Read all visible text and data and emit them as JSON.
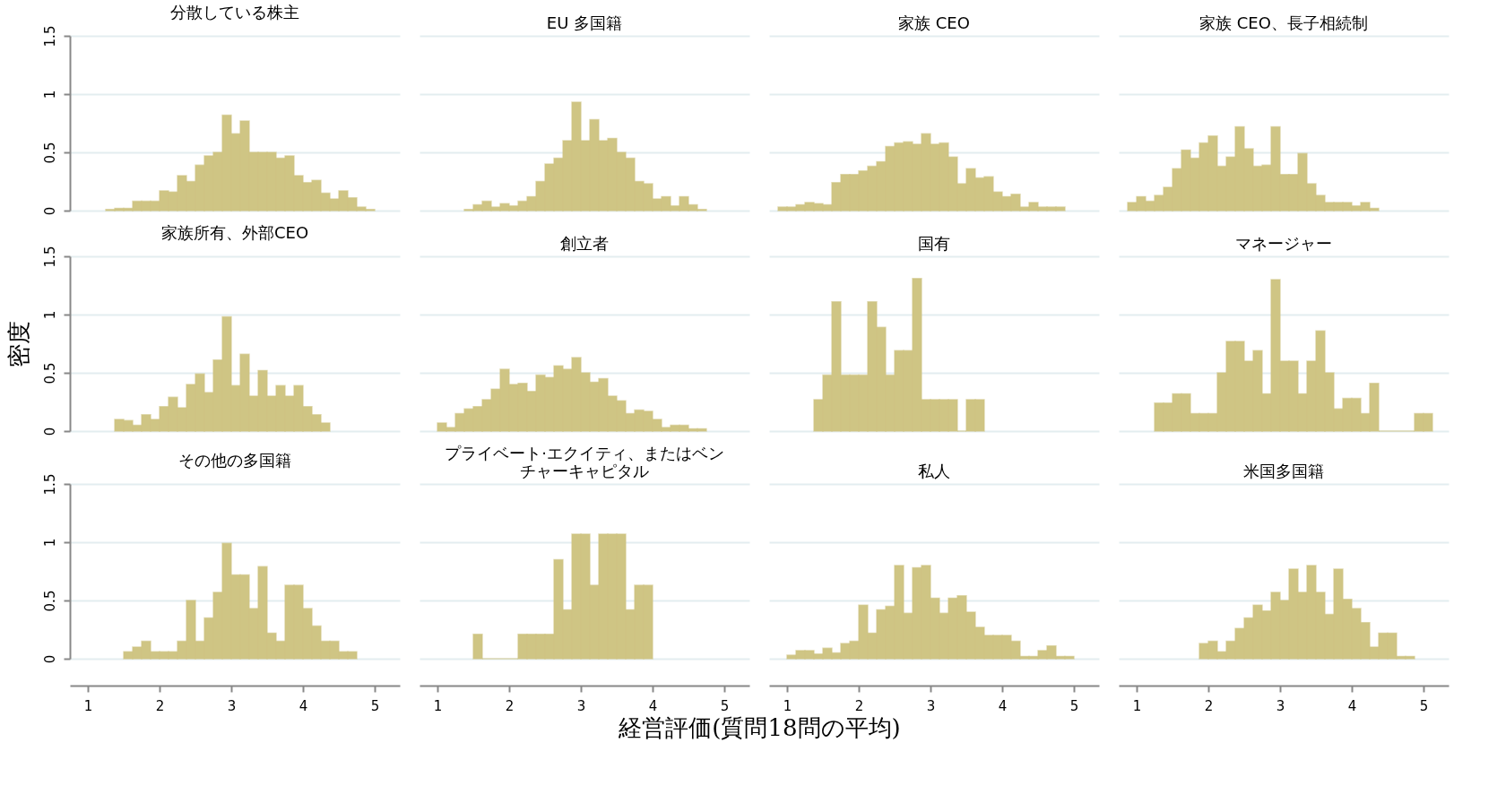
{
  "chart_data": [
    {
      "type": "histogram",
      "title": "分散している株主",
      "color": "#cfc584",
      "bins": [
        1.25,
        1.375,
        1.5,
        1.625,
        1.75,
        1.875,
        2,
        2.125,
        2.25,
        2.375,
        2.5,
        2.625,
        2.75,
        2.875,
        3,
        3.125,
        3.25,
        3.375,
        3.5,
        3.625,
        3.75,
        3.875,
        4,
        4.125,
        4.25,
        4.375,
        4.5,
        4.625,
        4.75,
        4.875,
        5
      ],
      "values": [
        0.01,
        0.02,
        0.02,
        0.08,
        0.08,
        0.08,
        0.17,
        0.16,
        0.3,
        0.25,
        0.39,
        0.47,
        0.5,
        0.82,
        0.66,
        0.77,
        0.5,
        0.5,
        0.5,
        0.45,
        0.47,
        0.3,
        0.24,
        0.26,
        0.15,
        0.1,
        0.17,
        0.11,
        0.03,
        0.01
      ],
      "xlim": [
        0.75,
        5.35
      ],
      "xticks": [
        1,
        2,
        3,
        4,
        5
      ],
      "ylim": [
        0,
        1.5
      ],
      "yticks": [
        0,
        0.5,
        1,
        1.5
      ],
      "grid": "y",
      "tick_labels": "y"
    },
    {
      "type": "histogram",
      "title": "EU 多国籍",
      "color": "#cfc584",
      "bins": [
        1.375,
        1.5,
        1.625,
        1.75,
        1.875,
        2,
        2.125,
        2.25,
        2.375,
        2.5,
        2.625,
        2.75,
        2.875,
        3,
        3.125,
        3.25,
        3.375,
        3.5,
        3.625,
        3.75,
        3.875,
        4,
        4.125,
        4.25,
        4.375,
        4.5,
        4.625,
        4.75
      ],
      "values": [
        0.01,
        0.05,
        0.08,
        0.03,
        0.06,
        0.04,
        0.08,
        0.12,
        0.25,
        0.4,
        0.45,
        0.6,
        0.93,
        0.6,
        0.78,
        0.6,
        0.62,
        0.5,
        0.45,
        0.25,
        0.23,
        0.1,
        0.12,
        0.04,
        0.12,
        0.05,
        0.01
      ],
      "xlim": [
        0.75,
        5.35
      ],
      "xticks": [
        1,
        2,
        3,
        4,
        5
      ],
      "ylim": [
        0,
        1.5
      ],
      "yticks": [
        0,
        0.5,
        1,
        1.5
      ],
      "grid": "y",
      "tick_labels": false
    },
    {
      "type": "histogram",
      "title": "家族 CEO",
      "color": "#cfc584",
      "bins": [
        0.875,
        1,
        1.125,
        1.25,
        1.375,
        1.5,
        1.625,
        1.75,
        1.875,
        2,
        2.125,
        2.25,
        2.375,
        2.5,
        2.625,
        2.75,
        2.875,
        3,
        3.125,
        3.25,
        3.375,
        3.5,
        3.625,
        3.75,
        3.875,
        4,
        4.125,
        4.25,
        4.375,
        4.5,
        4.625,
        4.75,
        4.875
      ],
      "values": [
        0.03,
        0.03,
        0.05,
        0.07,
        0.06,
        0.05,
        0.24,
        0.31,
        0.31,
        0.34,
        0.38,
        0.42,
        0.55,
        0.58,
        0.59,
        0.57,
        0.66,
        0.57,
        0.58,
        0.46,
        0.23,
        0.36,
        0.28,
        0.29,
        0.16,
        0.12,
        0.14,
        0.03,
        0.07,
        0.03,
        0.03,
        0.03
      ],
      "xlim": [
        0.75,
        5.35
      ],
      "xticks": [
        1,
        2,
        3,
        4,
        5
      ],
      "ylim": [
        0,
        1.5
      ],
      "yticks": [
        0,
        0.5,
        1,
        1.5
      ],
      "grid": "y",
      "tick_labels": false
    },
    {
      "type": "histogram",
      "title": "家族 CEO、長子相続制",
      "color": "#cfc584",
      "bins": [
        0.875,
        1,
        1.125,
        1.25,
        1.375,
        1.5,
        1.625,
        1.75,
        1.875,
        2,
        2.125,
        2.25,
        2.375,
        2.5,
        2.625,
        2.75,
        2.875,
        3,
        3.125,
        3.25,
        3.375,
        3.5,
        3.625,
        3.75,
        3.875,
        4,
        4.125,
        4.25,
        4.375
      ],
      "values": [
        0.07,
        0.12,
        0.08,
        0.13,
        0.2,
        0.36,
        0.52,
        0.45,
        0.58,
        0.64,
        0.38,
        0.46,
        0.72,
        0.53,
        0.38,
        0.39,
        0.72,
        0.31,
        0.31,
        0.49,
        0.23,
        0.13,
        0.07,
        0.07,
        0.07,
        0.04,
        0.07,
        0.02
      ],
      "xlim": [
        0.75,
        5.35
      ],
      "xticks": [
        1,
        2,
        3,
        4,
        5
      ],
      "ylim": [
        0,
        1.5
      ],
      "yticks": [
        0,
        0.5,
        1,
        1.5
      ],
      "grid": "y",
      "tick_labels": false
    },
    {
      "type": "histogram",
      "title": "家族所有、外部CEO",
      "ylabel": "密度",
      "color": "#cfc584",
      "bins": [
        1.375,
        1.5,
        1.625,
        1.75,
        1.875,
        2,
        2.125,
        2.25,
        2.375,
        2.5,
        2.625,
        2.75,
        2.875,
        3,
        3.125,
        3.25,
        3.375,
        3.5,
        3.625,
        3.75,
        3.875,
        4,
        4.125,
        4.25,
        4.375
      ],
      "values": [
        0.1,
        0.09,
        0.05,
        0.14,
        0.1,
        0.21,
        0.29,
        0.2,
        0.4,
        0.49,
        0.33,
        0.61,
        0.98,
        0.39,
        0.66,
        0.3,
        0.52,
        0.3,
        0.39,
        0.3,
        0.39,
        0.21,
        0.14,
        0.07
      ],
      "xlim": [
        0.75,
        5.35
      ],
      "xticks": [
        1,
        2,
        3,
        4,
        5
      ],
      "ylim": [
        0,
        1.5
      ],
      "yticks": [
        0,
        0.5,
        1,
        1.5
      ],
      "grid": "y",
      "tick_labels": "y"
    },
    {
      "type": "histogram",
      "title": "創立者",
      "color": "#cfc584",
      "bins": [
        1,
        1.125,
        1.25,
        1.375,
        1.5,
        1.625,
        1.75,
        1.875,
        2,
        2.125,
        2.25,
        2.375,
        2.5,
        2.625,
        2.75,
        2.875,
        3,
        3.125,
        3.25,
        3.375,
        3.5,
        3.625,
        3.75,
        3.875,
        4,
        4.125,
        4.25,
        4.375,
        4.5,
        4.625,
        4.75
      ],
      "values": [
        0.07,
        0.03,
        0.15,
        0.19,
        0.21,
        0.27,
        0.36,
        0.53,
        0.4,
        0.41,
        0.34,
        0.48,
        0.46,
        0.56,
        0.53,
        0.63,
        0.5,
        0.42,
        0.45,
        0.3,
        0.26,
        0.15,
        0.18,
        0.17,
        0.1,
        0.03,
        0.05,
        0.05,
        0.02,
        0.02
      ],
      "xlim": [
        0.75,
        5.35
      ],
      "xticks": [
        1,
        2,
        3,
        4,
        5
      ],
      "ylim": [
        0,
        1.5
      ],
      "yticks": [
        0,
        0.5,
        1,
        1.5
      ],
      "grid": "y",
      "tick_labels": false
    },
    {
      "type": "histogram",
      "title": "国有",
      "color": "#cfc584",
      "bins": [
        1.375,
        1.5,
        1.625,
        1.75,
        1.875,
        2,
        2.125,
        2.25,
        2.375,
        2.5,
        2.625,
        2.75,
        2.875,
        3,
        3.125,
        3.25,
        3.375,
        3.5,
        3.625,
        3.75
      ],
      "values": [
        0.27,
        0.48,
        1.11,
        0.48,
        0.48,
        0.48,
        1.11,
        0.89,
        0.48,
        0.69,
        0.69,
        1.31,
        0.27,
        0.27,
        0.27,
        0.27,
        0,
        0.27,
        0.27
      ],
      "xlim": [
        0.75,
        5.35
      ],
      "xticks": [
        1,
        2,
        3,
        4,
        5
      ],
      "ylim": [
        0,
        1.5
      ],
      "yticks": [
        0,
        0.5,
        1,
        1.5
      ],
      "grid": "y",
      "tick_labels": false
    },
    {
      "type": "histogram",
      "title": "マネージャー",
      "color": "#cfc584",
      "bins": [
        1.25,
        1.375,
        1.5,
        1.625,
        1.75,
        1.875,
        2,
        2.125,
        2.25,
        2.375,
        2.5,
        2.625,
        2.75,
        2.875,
        3,
        3.125,
        3.25,
        3.375,
        3.5,
        3.625,
        3.75,
        3.875,
        4,
        4.125,
        4.25,
        4.375,
        4.5,
        4.625,
        4.75,
        4.875,
        5,
        5.125
      ],
      "values": [
        0.24,
        0.24,
        0.32,
        0.32,
        0.15,
        0.15,
        0.15,
        0.5,
        0.77,
        0.77,
        0.6,
        0.69,
        0.32,
        1.3,
        0.6,
        0.6,
        0.32,
        0.6,
        0.86,
        0.5,
        0.19,
        0.28,
        0.28,
        0.15,
        0.41,
        0,
        0,
        0,
        0,
        0.15,
        0.15
      ],
      "xlim": [
        0.75,
        5.35
      ],
      "xticks": [
        1,
        2,
        3,
        4,
        5
      ],
      "ylim": [
        0,
        1.5
      ],
      "yticks": [
        0,
        0.5,
        1,
        1.5
      ],
      "grid": "y",
      "tick_labels": false
    },
    {
      "type": "histogram",
      "title": "その他の多国籍",
      "color": "#cfc584",
      "bins": [
        1.5,
        1.625,
        1.75,
        1.875,
        2,
        2.125,
        2.25,
        2.375,
        2.5,
        2.625,
        2.75,
        2.875,
        3,
        3.125,
        3.25,
        3.375,
        3.5,
        3.625,
        3.75,
        3.875,
        4,
        4.125,
        4.25,
        4.375,
        4.5,
        4.625,
        4.75
      ],
      "values": [
        0.06,
        0.1,
        0.15,
        0.06,
        0.06,
        0.06,
        0.15,
        0.5,
        0.15,
        0.35,
        0.57,
        0.99,
        0.72,
        0.72,
        0.43,
        0.79,
        0.22,
        0.15,
        0.63,
        0.63,
        0.43,
        0.28,
        0.15,
        0.15,
        0.06,
        0.06
      ],
      "xlim": [
        0.75,
        5.35
      ],
      "xticks": [
        1,
        2,
        3,
        4,
        5
      ],
      "ylim": [
        0,
        1.5
      ],
      "yticks": [
        0,
        0.5,
        1,
        1.5
      ],
      "grid": "y"
    },
    {
      "type": "histogram",
      "title": "プライベート·エクイティ、またはベンチャーキャピタル",
      "xlabel": "経営評価(質問18問の平均)",
      "color": "#cfc584",
      "bins": [
        1.5,
        1.625,
        1.75,
        1.875,
        2,
        2.125,
        2.25,
        2.375,
        2.5,
        2.625,
        2.75,
        2.875,
        3,
        3.125,
        3.25,
        3.375,
        3.5,
        3.625,
        3.75,
        3.875,
        4
      ],
      "values": [
        0.21,
        0,
        0,
        0,
        0,
        0.21,
        0.21,
        0.21,
        0.21,
        0.85,
        0.42,
        1.07,
        1.07,
        0.63,
        1.07,
        1.07,
        1.07,
        0.42,
        0.63,
        0.63
      ],
      "xlim": [
        0.75,
        5.35
      ],
      "xticks": [
        1,
        2,
        3,
        4,
        5
      ],
      "ylim": [
        0,
        1.5
      ],
      "yticks": [
        0,
        0.5,
        1,
        1.5
      ],
      "grid": "y",
      "tick_labels": "x"
    },
    {
      "type": "histogram",
      "title": "私人",
      "color": "#cfc584",
      "bins": [
        1,
        1.125,
        1.25,
        1.375,
        1.5,
        1.625,
        1.75,
        1.875,
        2,
        2.125,
        2.25,
        2.375,
        2.5,
        2.625,
        2.75,
        2.875,
        3,
        3.125,
        3.25,
        3.375,
        3.5,
        3.625,
        3.75,
        3.875,
        4,
        4.125,
        4.25,
        4.375,
        4.5,
        4.625,
        4.75,
        4.875,
        5
      ],
      "values": [
        0.03,
        0.07,
        0.07,
        0.04,
        0.09,
        0.05,
        0.13,
        0.15,
        0.46,
        0.22,
        0.42,
        0.45,
        0.8,
        0.39,
        0.78,
        0.8,
        0.52,
        0.39,
        0.52,
        0.54,
        0.4,
        0.27,
        0.2,
        0.2,
        0.2,
        0.15,
        0.02,
        0.02,
        0.07,
        0.11,
        0.02,
        0.02
      ],
      "xlim": [
        0.75,
        5.35
      ],
      "xticks": [
        1,
        2,
        3,
        4,
        5
      ],
      "ylim": [
        0,
        1.5
      ],
      "yticks": [
        0,
        0.5,
        1,
        1.5
      ],
      "grid": "y",
      "tick_labels": "x"
    },
    {
      "type": "histogram",
      "title": "米国多国籍",
      "color": "#cfc584",
      "bins": [
        1.875,
        2,
        2.125,
        2.25,
        2.375,
        2.5,
        2.625,
        2.75,
        2.875,
        3,
        3.125,
        3.25,
        3.375,
        3.5,
        3.625,
        3.75,
        3.875,
        4,
        4.125,
        4.25,
        4.375,
        4.5,
        4.625,
        4.75,
        4.875
      ],
      "values": [
        0.13,
        0.15,
        0.06,
        0.15,
        0.26,
        0.35,
        0.46,
        0.41,
        0.57,
        0.5,
        0.77,
        0.57,
        0.8,
        0.57,
        0.38,
        0.77,
        0.51,
        0.43,
        0.31,
        0.1,
        0.22,
        0.22,
        0.02,
        0.02
      ],
      "xlim": [
        0.75,
        5.35
      ],
      "xticks": [
        1,
        2,
        3,
        4,
        5
      ],
      "ylim": [
        0,
        1.5
      ],
      "yticks": [
        0,
        0.5,
        1,
        1.5
      ],
      "grid": "y",
      "tick_labels": "x"
    }
  ]
}
